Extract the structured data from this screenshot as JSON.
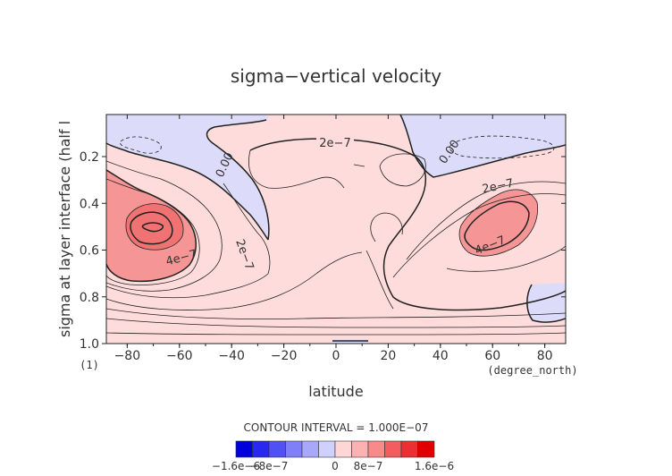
{
  "chart_data": {
    "type": "contour",
    "title": "sigma−vertical velocity",
    "xlabel": "latitude",
    "ylabel": "sigma at layer interface (half l",
    "ylabel_units": "(1)",
    "x_units": "(degree_north)",
    "xlim": [
      -88,
      88
    ],
    "ylim": [
      1.0,
      0.02
    ],
    "x_ticks": [
      -80,
      -60,
      -40,
      -20,
      0,
      20,
      40,
      60,
      80
    ],
    "x_tick_labels": [
      "−80",
      "−60",
      "−40",
      "−20",
      "0",
      "20",
      "40",
      "60",
      "80"
    ],
    "y_ticks": [
      0.2,
      0.4,
      0.6,
      0.8,
      1.0
    ],
    "y_tick_labels": [
      "0.2",
      "0.4",
      "0.6",
      "0.8",
      "1.0"
    ],
    "contour_interval_text": "CONTOUR INTERVAL = 1.000E−07",
    "contour_labels": [
      {
        "text": "2e−7",
        "x": -5,
        "y": 0.16
      },
      {
        "text": "0.00",
        "x": -48,
        "y": 0.19
      },
      {
        "text": "0.00",
        "x": 47,
        "y": 0.17
      },
      {
        "text": "2e−7",
        "x": 63,
        "y": 0.37
      },
      {
        "text": "4e−7",
        "x": -61,
        "y": 0.63
      },
      {
        "text": "2e−7",
        "x": -37,
        "y": 0.64
      },
      {
        "text": "4e−7",
        "x": 60,
        "y": 0.59
      }
    ],
    "colorbar": {
      "colors": [
        "#0000dd",
        "#2828f0",
        "#5050f5",
        "#7f7ff8",
        "#a8a8fb",
        "#d0d0fd",
        "#ffd6d6",
        "#fcb2b2",
        "#f88a8a",
        "#f25e5e",
        "#ea3030",
        "#e00000"
      ],
      "labels": [
        "−1.6e−6",
        "−8e−7",
        "0",
        "8e−7",
        "1.6e−6"
      ]
    },
    "colors": {
      "background_positive": "#ffdcdc",
      "negative": "#dcdcfa",
      "positive_4e7": "#f59595"
    }
  }
}
